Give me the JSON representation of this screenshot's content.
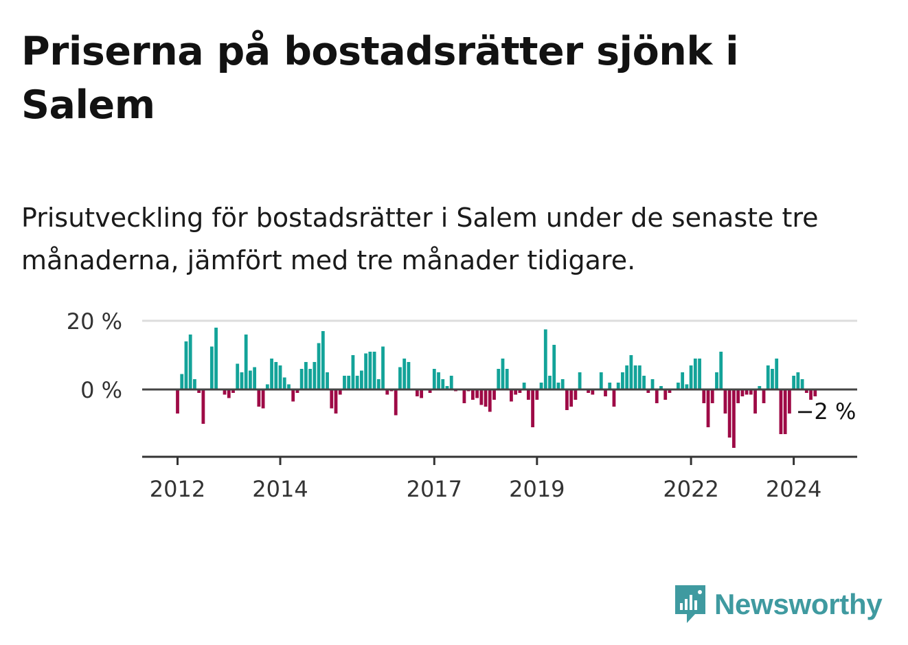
{
  "title": "Priserna på bostadsrätter sjönk i Salem",
  "subtitle": "Prisutveckling för bostadsrätter i Salem under de senaste tre månaderna, jämfört med tre månader tidigare.",
  "logo": {
    "text": "Newsworthy",
    "icon": "newsworthy-logo-icon"
  },
  "colors": {
    "positive": "#13a399",
    "negative": "#9e0a46",
    "grid": "#dddddd",
    "axis": "#333333",
    "text": "#333333",
    "logo": "#3f9aa0"
  },
  "chart_data": {
    "type": "bar",
    "title": "Priserna på bostadsrätter sjönk i Salem",
    "xlabel": "",
    "ylabel": "",
    "unit": "%",
    "ylim": [
      -20,
      20
    ],
    "y_ticks": [
      {
        "value": 20,
        "label": "20 %"
      },
      {
        "value": 0,
        "label": "0 %"
      }
    ],
    "x_ticks": [
      {
        "index": 0,
        "label": "2012"
      },
      {
        "index": 24,
        "label": "2014"
      },
      {
        "index": 60,
        "label": "2017"
      },
      {
        "index": 84,
        "label": "2019"
      },
      {
        "index": 120,
        "label": "2022"
      },
      {
        "index": 144,
        "label": "2024"
      }
    ],
    "annotation": {
      "index": 144,
      "label": "−2 %"
    },
    "start": "2012-01",
    "values": [
      -7,
      4.5,
      14,
      16,
      3,
      -1,
      -10,
      0,
      12.5,
      18,
      0,
      -1.5,
      -2.5,
      -1,
      7.5,
      5,
      16,
      5.5,
      6.5,
      -5,
      -5.5,
      1.5,
      9,
      8,
      7,
      3.5,
      1.5,
      -3.5,
      -1,
      6,
      8,
      6,
      8,
      13.5,
      17,
      5,
      -5.5,
      -7,
      -1.5,
      4,
      4,
      10,
      4,
      5.5,
      10.5,
      11,
      11,
      3,
      12.5,
      -1.5,
      -0.5,
      -7.5,
      6.5,
      9,
      8,
      0,
      -2,
      -2.5,
      0,
      -1,
      6,
      5,
      3,
      1,
      4,
      -0.5,
      0,
      -4,
      -0.5,
      -3,
      -2.5,
      -4.5,
      -5,
      -6.5,
      -3,
      6,
      9,
      6,
      -3.5,
      -1.5,
      -1,
      2,
      -3,
      -11,
      -3,
      2,
      17.5,
      4,
      13,
      2,
      3,
      -6,
      -5,
      -3,
      5,
      0,
      -1,
      -1.5,
      0,
      5,
      -2,
      2,
      -5,
      2,
      5,
      7,
      10,
      7,
      7,
      4,
      -1,
      3,
      -4,
      1,
      -3,
      -1,
      0,
      2,
      5,
      1.5,
      7,
      9,
      9,
      -4,
      -11,
      -4,
      5,
      11,
      -7,
      -14,
      -17,
      -4,
      -2,
      -1.5,
      -1.5,
      -7,
      1,
      -4,
      7,
      6,
      9,
      -13,
      -13,
      -7,
      4,
      5,
      3,
      -1,
      -3,
      -2
    ]
  }
}
